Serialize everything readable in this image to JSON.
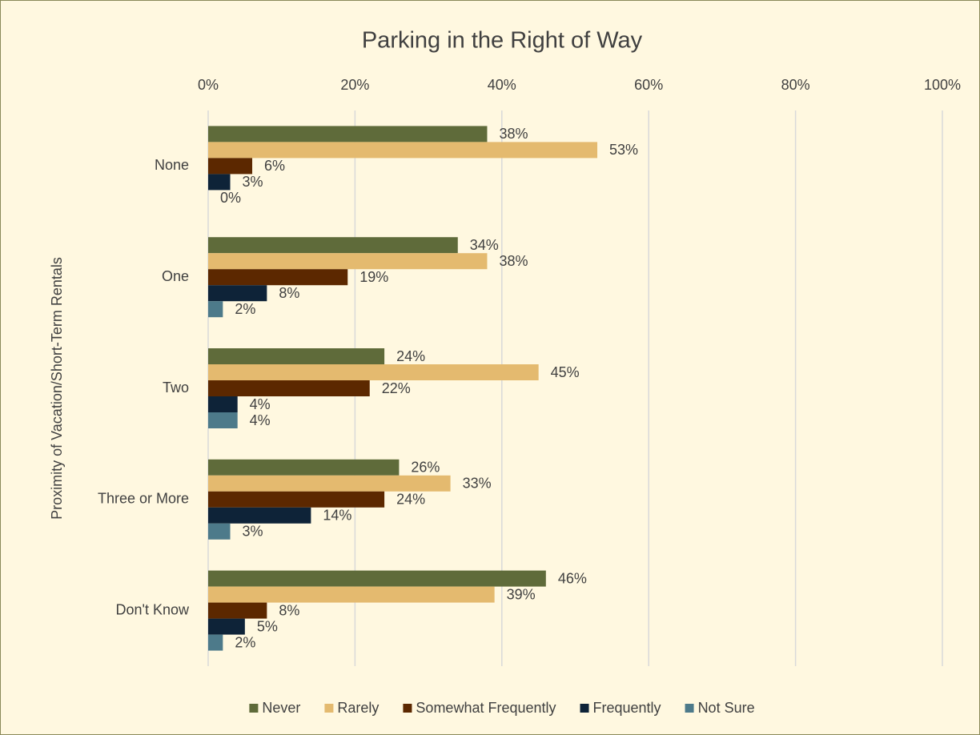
{
  "chart_data": {
    "type": "bar",
    "orientation": "horizontal",
    "title": "Parking in the Right of Way",
    "y_axis_label": "Proximity of Vacation/Short-Term Rentals",
    "categories": [
      "None",
      "One",
      "Two",
      "Three or More",
      "Don't Know"
    ],
    "series": [
      {
        "name": "Never",
        "color": "#5f6b3a",
        "values": [
          38,
          34,
          24,
          26,
          46
        ],
        "value_labels": [
          "38%",
          "34%",
          "24%",
          "26%",
          "46%"
        ]
      },
      {
        "name": "Rarely",
        "color": "#e4ba6f",
        "values": [
          53,
          38,
          45,
          33,
          39
        ],
        "value_labels": [
          "53%",
          "38%",
          "45%",
          "33%",
          "39%"
        ]
      },
      {
        "name": "Somewhat Frequently",
        "color": "#5c2800",
        "values": [
          6,
          19,
          22,
          24,
          8
        ],
        "value_labels": [
          "6%",
          "19%",
          "22%",
          "24%",
          "8%"
        ]
      },
      {
        "name": "Frequently",
        "color": "#0e2338",
        "values": [
          3,
          8,
          4,
          14,
          5
        ],
        "value_labels": [
          "3%",
          "8%",
          "4%",
          "14%",
          "5%"
        ]
      },
      {
        "name": "Not Sure",
        "color": "#4d7a8a",
        "values": [
          0,
          2,
          4,
          3,
          2
        ],
        "value_labels": [
          "0%",
          "2%",
          "4%",
          "3%",
          "2%"
        ]
      }
    ],
    "xlim": [
      0,
      100
    ],
    "xticks": [
      {
        "value": 0,
        "label": "0%"
      },
      {
        "value": 20,
        "label": "20%"
      },
      {
        "value": 40,
        "label": "40%"
      },
      {
        "value": 60,
        "label": "60%"
      },
      {
        "value": 80,
        "label": "80%"
      },
      {
        "value": 100,
        "label": "100%"
      }
    ],
    "grid": true,
    "legend": "bottom"
  }
}
